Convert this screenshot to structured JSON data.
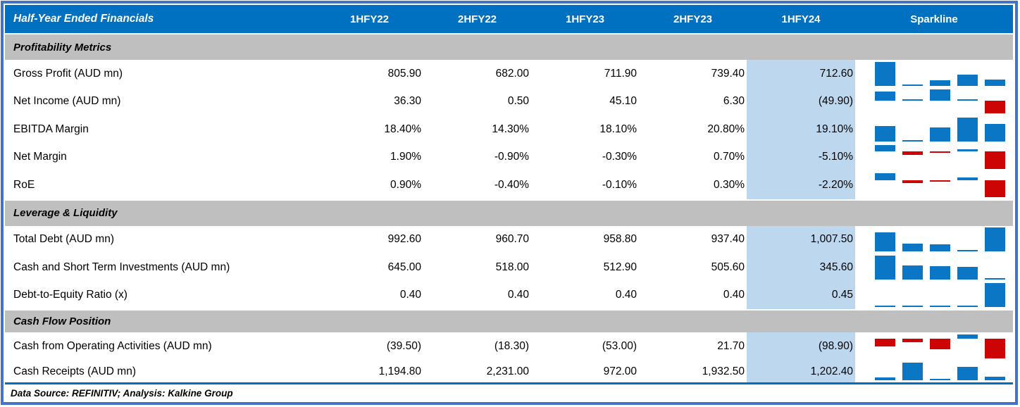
{
  "header": {
    "title": "Half-Year Ended Financials",
    "columns": [
      "1HFY22",
      "2HFY22",
      "1HFY23",
      "2HFY23",
      "1HFY24",
      "Sparkline"
    ],
    "highlighted_column": "1HFY24"
  },
  "footer": {
    "text": "Data Source: REFINITIV; Analysis: Kalkine Group"
  },
  "colors": {
    "header_bg": "#0070C0",
    "section_bg": "#BFBFBF",
    "highlight_bg": "#BDD7EE",
    "outer_border": "#4472C4",
    "rule_blue": "#0070C0",
    "spark_positive": "#0B76C4",
    "spark_negative": "#CC0404"
  },
  "chart_data": {
    "type": "table",
    "title": "Half-Year Ended Financials",
    "columns": [
      "1HFY22",
      "2HFY22",
      "1HFY23",
      "2HFY23",
      "1HFY24"
    ],
    "highlighted_column": "1HFY24",
    "sparkline": {
      "type": "bar",
      "positive_color": "#0B76C4",
      "negative_color": "#CC0404",
      "scaling": "per-row min-max, negatives below zero axis"
    },
    "sections": [
      {
        "title": "Profitability Metrics",
        "rows": [
          {
            "label": "Gross Profit (AUD mn)",
            "display": [
              "805.90",
              "682.00",
              "711.90",
              "739.40",
              "712.60"
            ],
            "values": [
              805.9,
              682.0,
              711.9,
              739.4,
              712.6
            ]
          },
          {
            "label": "Net Income (AUD mn)",
            "display": [
              "36.30",
              "0.50",
              "45.10",
              "6.30",
              "(49.90)"
            ],
            "values": [
              36.3,
              0.5,
              45.1,
              6.3,
              -49.9
            ]
          },
          {
            "label": "EBITDA Margin",
            "display": [
              "18.40%",
              "14.30%",
              "18.10%",
              "20.80%",
              "19.10%"
            ],
            "values": [
              18.4,
              14.3,
              18.1,
              20.8,
              19.1
            ]
          },
          {
            "label": "Net Margin",
            "display": [
              "1.90%",
              "-0.90%",
              "-0.30%",
              "0.70%",
              "-5.10%"
            ],
            "values": [
              1.9,
              -0.9,
              -0.3,
              0.7,
              -5.1
            ]
          },
          {
            "label": "RoE",
            "display": [
              "0.90%",
              "-0.40%",
              "-0.10%",
              "0.30%",
              "-2.20%"
            ],
            "values": [
              0.9,
              -0.4,
              -0.1,
              0.3,
              -2.2
            ]
          }
        ]
      },
      {
        "title": "Leverage & Liquidity",
        "rows": [
          {
            "label": "Total Debt (AUD mn)",
            "display": [
              "992.60",
              "960.70",
              "958.80",
              "937.40",
              "1,007.50"
            ],
            "values": [
              992.6,
              960.7,
              958.8,
              937.4,
              1007.5
            ]
          },
          {
            "label": "Cash and Short Term Investments (AUD mn)",
            "display": [
              "645.00",
              "518.00",
              "512.90",
              "505.60",
              "345.60"
            ],
            "values": [
              645.0,
              518.0,
              512.9,
              505.6,
              345.6
            ]
          },
          {
            "label": "Debt-to-Equity Ratio (x)",
            "display": [
              "0.40",
              "0.40",
              "0.40",
              "0.40",
              "0.45"
            ],
            "values": [
              0.4,
              0.4,
              0.4,
              0.4,
              0.45
            ]
          }
        ]
      },
      {
        "title": "Cash Flow Position",
        "rows": [
          {
            "label": "Cash from Operating Activities (AUD mn)",
            "display": [
              "(39.50)",
              "(18.30)",
              "(53.00)",
              "21.70",
              "(98.90)"
            ],
            "values": [
              -39.5,
              -18.3,
              -53.0,
              21.7,
              -98.9
            ]
          },
          {
            "label": "Cash Receipts (AUD mn)",
            "display": [
              "1,194.80",
              "2,231.00",
              "972.00",
              "1,932.50",
              "1,202.40"
            ],
            "values": [
              1194.8,
              2231.0,
              972.0,
              1932.5,
              1202.4
            ]
          }
        ]
      }
    ]
  }
}
